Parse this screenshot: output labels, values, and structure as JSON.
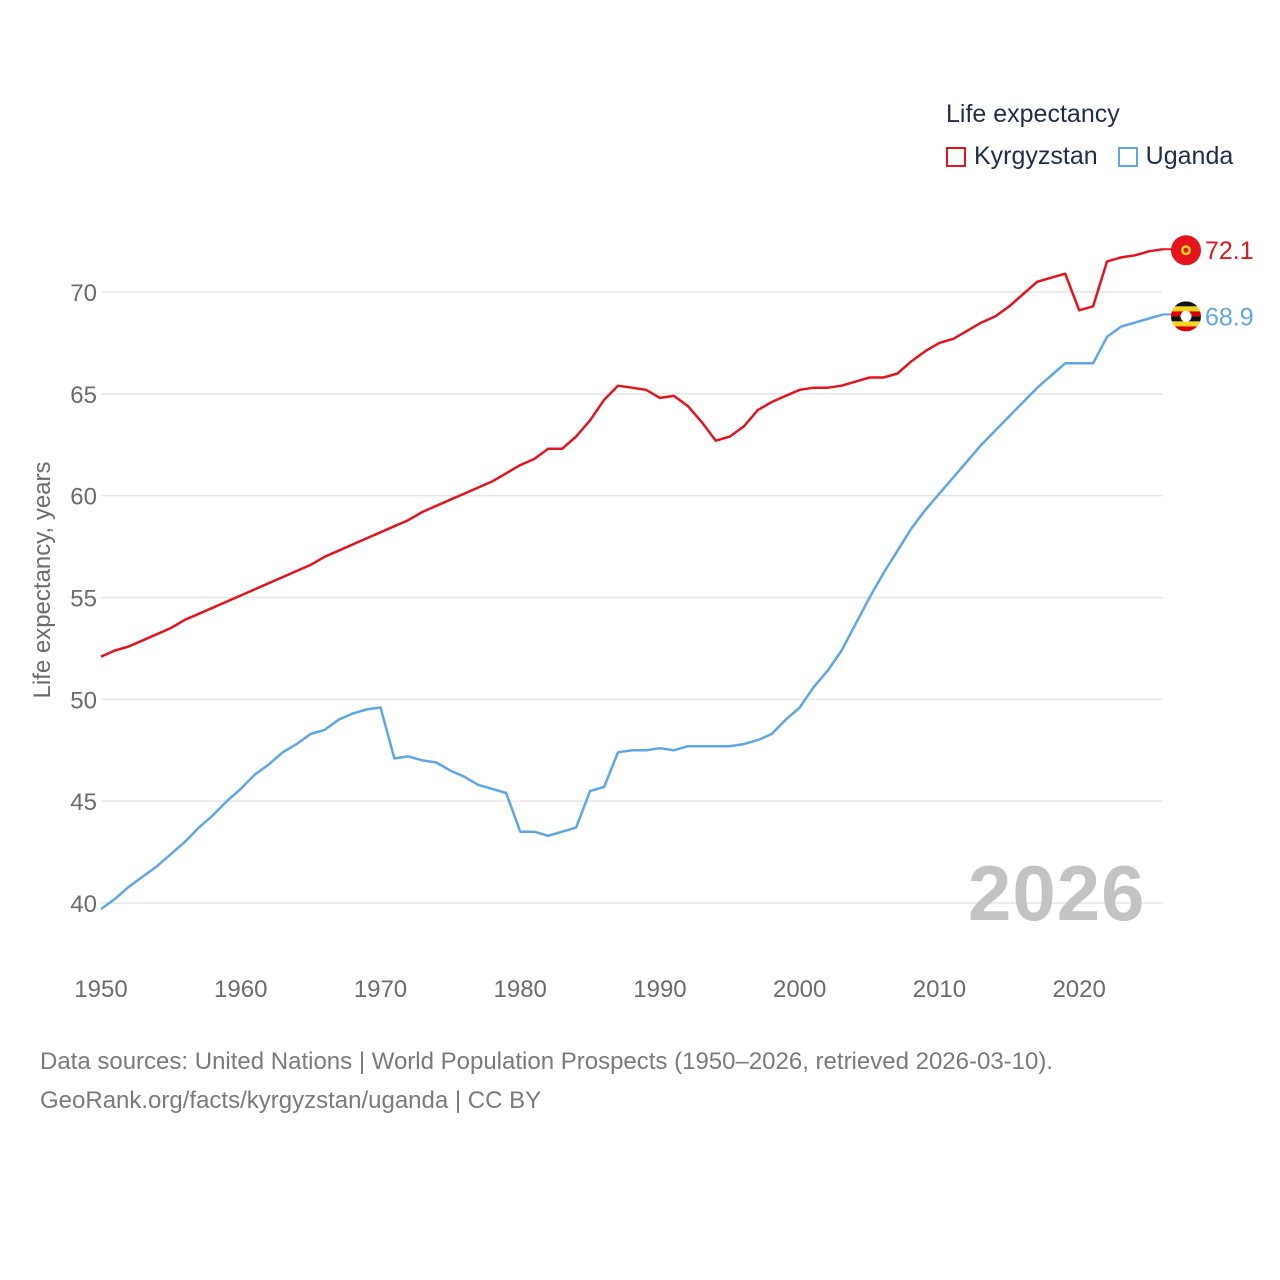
{
  "legend": {
    "title": "Life expectancy",
    "items": [
      {
        "name": "Kyrgyzstan",
        "color": "#e3141c"
      },
      {
        "name": "Uganda",
        "color": "#5fa6e6"
      }
    ]
  },
  "year_label": "2026",
  "footer": {
    "line1": "Data sources: United Nations | World Population Prospects (1950–2026, retrieved 2026-03-10).",
    "line2": "GeoRank.org/facts/kyrgyzstan/uganda | CC BY"
  },
  "chart_data": {
    "type": "line",
    "title": "Life expectancy",
    "xlabel": "",
    "ylabel": "Life expectancy, years",
    "xlim": [
      1950,
      2026
    ],
    "ylim": [
      40,
      72.5
    ],
    "xticks": [
      1950,
      1960,
      1970,
      1980,
      1990,
      2000,
      2010,
      2020
    ],
    "yticks": [
      40,
      45,
      50,
      55,
      60,
      65,
      70
    ],
    "grid": true,
    "x": [
      1950,
      1951,
      1952,
      1953,
      1954,
      1955,
      1956,
      1957,
      1958,
      1959,
      1960,
      1961,
      1962,
      1963,
      1964,
      1965,
      1966,
      1967,
      1968,
      1969,
      1970,
      1971,
      1972,
      1973,
      1974,
      1975,
      1976,
      1977,
      1978,
      1979,
      1980,
      1981,
      1982,
      1983,
      1984,
      1985,
      1986,
      1987,
      1988,
      1989,
      1990,
      1991,
      1992,
      1993,
      1994,
      1995,
      1996,
      1997,
      1998,
      1999,
      2000,
      2001,
      2002,
      2003,
      2004,
      2005,
      2006,
      2007,
      2008,
      2009,
      2010,
      2011,
      2012,
      2013,
      2014,
      2015,
      2016,
      2017,
      2018,
      2019,
      2020,
      2021,
      2022,
      2023,
      2024,
      2025,
      2026
    ],
    "series": [
      {
        "name": "Kyrgyzstan",
        "color": "#e3141c",
        "end_label": "72.1",
        "values": [
          52.1,
          52.4,
          52.6,
          52.9,
          53.2,
          53.5,
          53.9,
          54.2,
          54.5,
          54.8,
          55.1,
          55.4,
          55.7,
          56.0,
          56.3,
          56.6,
          57.0,
          57.3,
          57.6,
          57.9,
          58.2,
          58.5,
          58.8,
          59.2,
          59.5,
          59.8,
          60.1,
          60.4,
          60.7,
          61.1,
          61.5,
          61.8,
          62.3,
          62.3,
          62.9,
          63.7,
          64.7,
          65.4,
          65.3,
          65.2,
          64.8,
          64.9,
          64.4,
          63.6,
          62.7,
          62.9,
          63.4,
          64.2,
          64.6,
          64.9,
          65.2,
          65.3,
          65.3,
          65.4,
          65.6,
          65.8,
          65.8,
          66.0,
          66.6,
          67.1,
          67.5,
          67.7,
          68.1,
          68.5,
          68.8,
          69.3,
          69.9,
          70.5,
          70.7,
          70.9,
          69.1,
          69.3,
          71.5,
          71.7,
          71.8,
          72.0,
          72.1
        ]
      },
      {
        "name": "Uganda",
        "color": "#5fa6e6",
        "end_label": "68.9",
        "values": [
          39.7,
          40.2,
          40.8,
          41.3,
          41.8,
          42.4,
          43.0,
          43.7,
          44.3,
          45.0,
          45.6,
          46.3,
          46.8,
          47.4,
          47.8,
          48.3,
          48.5,
          49.0,
          49.3,
          49.5,
          49.6,
          47.1,
          47.2,
          47.0,
          46.9,
          46.5,
          46.2,
          45.8,
          45.6,
          45.4,
          43.5,
          43.5,
          43.3,
          43.5,
          43.7,
          45.5,
          45.7,
          47.4,
          47.5,
          47.5,
          47.6,
          47.5,
          47.7,
          47.7,
          47.7,
          47.7,
          47.8,
          48.0,
          48.3,
          49.0,
          49.6,
          50.6,
          51.4,
          52.4,
          53.7,
          55.0,
          56.2,
          57.3,
          58.4,
          59.3,
          60.1,
          60.9,
          61.7,
          62.5,
          63.2,
          63.9,
          64.6,
          65.3,
          65.9,
          66.5,
          66.5,
          66.5,
          67.8,
          68.3,
          68.5,
          68.7,
          68.9
        ]
      }
    ]
  }
}
